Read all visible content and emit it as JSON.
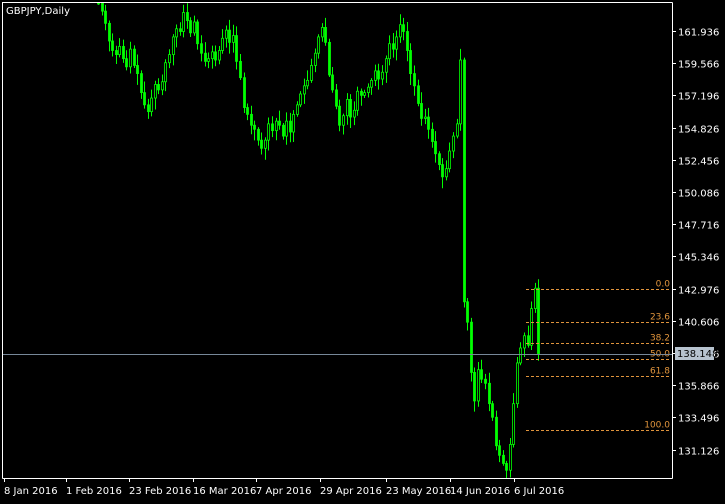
{
  "window": {
    "title": "GBPJPY,Daily"
  },
  "colors": {
    "background": "#000000",
    "axis": "#ffffff",
    "candle": "#00ff00",
    "fib": "#e0943c",
    "bid_line": "#778899",
    "bid_box": "#b7c3cf",
    "bid_text": "#000000",
    "text": "#ffffff"
  },
  "chart_data": {
    "type": "candlestick",
    "symbol": "GBPJPY",
    "timeframe": "Daily",
    "y_ticks": [
      161.936,
      159.566,
      157.196,
      154.826,
      152.456,
      150.086,
      147.716,
      145.346,
      142.976,
      140.606,
      138.236,
      135.866,
      133.496,
      131.126
    ],
    "x_ticks": [
      "8 Jan 2016",
      "1 Feb 2016",
      "23 Feb 2016",
      "16 Mar 2016",
      "7 Apr 2016",
      "29 Apr 2016",
      "23 May 2016",
      "14 Jun 2016",
      "6 Jul 2016"
    ],
    "ylim": [
      128.6,
      164.4
    ],
    "current_price": "138.148",
    "fibonacci": {
      "levels": [
        {
          "label": "0.0",
          "price": 142.976
        },
        {
          "label": "23.6",
          "price": 140.52
        },
        {
          "label": "38.2",
          "price": 139.0
        },
        {
          "label": "50.0",
          "price": 137.77
        },
        {
          "label": "61.8",
          "price": 136.54
        },
        {
          "label": "100.0",
          "price": 132.56
        }
      ]
    },
    "closes": [
      164.4,
      163.4,
      162.5,
      161.2,
      160.5,
      160.2,
      160.8,
      159.9,
      159.3,
      160.6,
      159.4,
      158.8,
      157.4,
      156.5,
      156.0,
      157.0,
      158.0,
      157.6,
      158.2,
      159.6,
      160.2,
      161.5,
      162.1,
      161.9,
      163.3,
      162.7,
      161.8,
      162.6,
      161.0,
      160.3,
      159.7,
      159.9,
      160.4,
      159.8,
      160.5,
      161.4,
      162.0,
      161.1,
      161.6,
      159.7,
      158.5,
      156.3,
      155.8,
      155.0,
      154.7,
      153.9,
      153.3,
      153.9,
      155.1,
      154.6,
      155.3,
      155.0,
      154.2,
      155.3,
      154.5,
      155.8,
      156.5,
      157.3,
      157.9,
      158.3,
      159.4,
      160.3,
      161.5,
      162.2,
      161.1,
      158.7,
      157.6,
      156.4,
      155.0,
      155.7,
      156.9,
      155.6,
      156.1,
      157.5,
      157.2,
      157.4,
      157.8,
      158.3,
      159.0,
      158.4,
      158.9,
      159.9,
      161.0,
      160.6,
      161.5,
      162.4,
      161.9,
      160.5,
      158.8,
      157.9,
      156.6,
      155.5,
      155.6,
      154.7,
      153.8,
      152.9,
      152.1,
      151.2,
      151.8,
      153.1,
      154.2,
      155.1,
      159.8,
      142.0,
      140.5,
      136.8,
      134.7,
      137.0,
      136.3,
      136.0,
      134.5,
      133.5,
      131.4,
      130.7,
      130.1,
      129.6,
      131.5,
      134.5,
      137.5,
      138.6,
      139.5,
      138.8,
      141.5,
      143.0,
      138.15
    ]
  }
}
